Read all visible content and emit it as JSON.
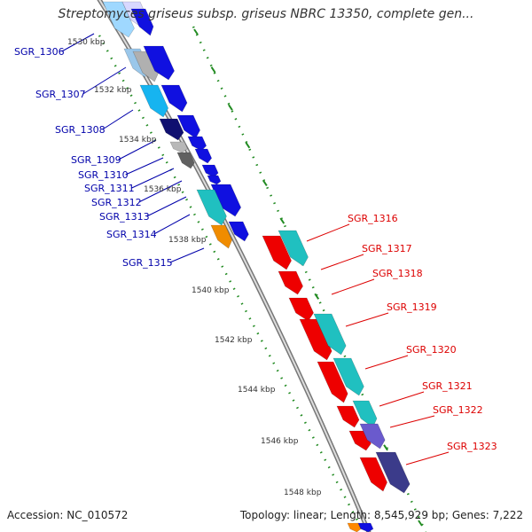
{
  "title": "Streptomyces griseus subsp. griseus NBRC 13350, complete gen...",
  "footer": {
    "accession": "Accession: NC_010572",
    "summary": "Topology: linear; Length: 8,545,929 bp; Genes: 7,222"
  },
  "ruler": {
    "ticks": [
      "1530 kbp",
      "1532 kbp",
      "1534 kbp",
      "1536 kbp",
      "1538 kbp",
      "1540 kbp",
      "1542 kbp",
      "1544 kbp",
      "1546 kbp",
      "1548 kbp"
    ]
  },
  "genes_left": [
    "SGR_1306",
    "SGR_1307",
    "SGR_1308",
    "SGR_1309",
    "SGR_1310",
    "SGR_1311",
    "SGR_1312",
    "SGR_1313",
    "SGR_1314",
    "SGR_1315"
  ],
  "genes_right": [
    "SGR_1316",
    "SGR_1317",
    "SGR_1318",
    "SGR_1319",
    "SGR_1320",
    "SGR_1321",
    "SGR_1322",
    "SGR_1323"
  ],
  "colors": {
    "left_label": "#0000aa",
    "right_label": "#dd0000",
    "backbone": "#888888",
    "tick_dots": "#228b22",
    "blue": "#1010e0",
    "red": "#ee0000",
    "cyan": "#20c0c0",
    "purple": "#6a5acd",
    "orange": "#f08c00"
  }
}
